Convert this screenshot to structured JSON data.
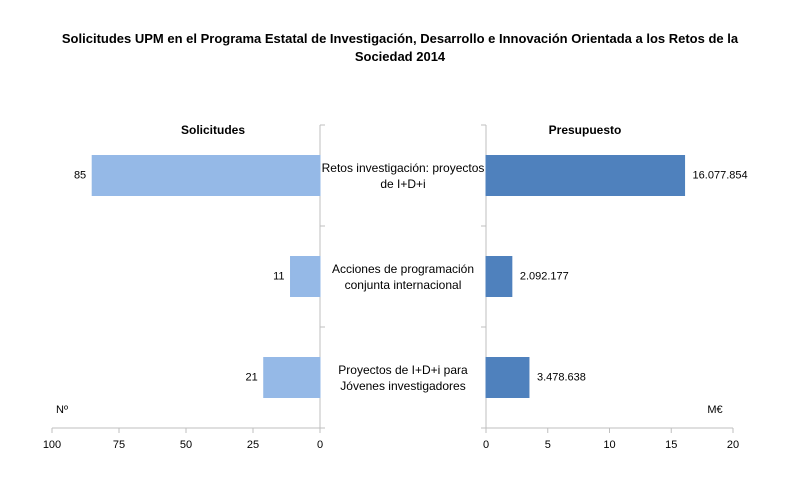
{
  "chart_data": [
    {
      "type": "bar",
      "orientation": "horizontal",
      "title": "Solicitudes UPM en el Programa Estatal de Investigación, Desarrollo e Innovación Orientada a los Retos de la Sociedad 2014",
      "subtitle": "Solicitudes",
      "xlabel": "Nº",
      "categories": [
        "Retos investigación: proyectos de I+D+i",
        "Acciones de programación conjunta internacional",
        "Proyectos de I+D+i para Jóvenes investigadores"
      ],
      "values": [
        85,
        11,
        21
      ],
      "color": "#95b9e7",
      "xlim": [
        100,
        0
      ],
      "xticks": [
        100,
        75,
        50,
        25,
        0
      ]
    },
    {
      "type": "bar",
      "orientation": "horizontal",
      "subtitle": "Presupuesto",
      "xlabel": "M€",
      "values": [
        16.077854,
        2.092177,
        3.478638
      ],
      "value_labels": [
        "16.077.854",
        "2.092.177",
        "3.478.638"
      ],
      "color": "#4f81bd",
      "xlim": [
        0,
        20
      ],
      "xticks": [
        0,
        5,
        10,
        15,
        20
      ]
    }
  ]
}
